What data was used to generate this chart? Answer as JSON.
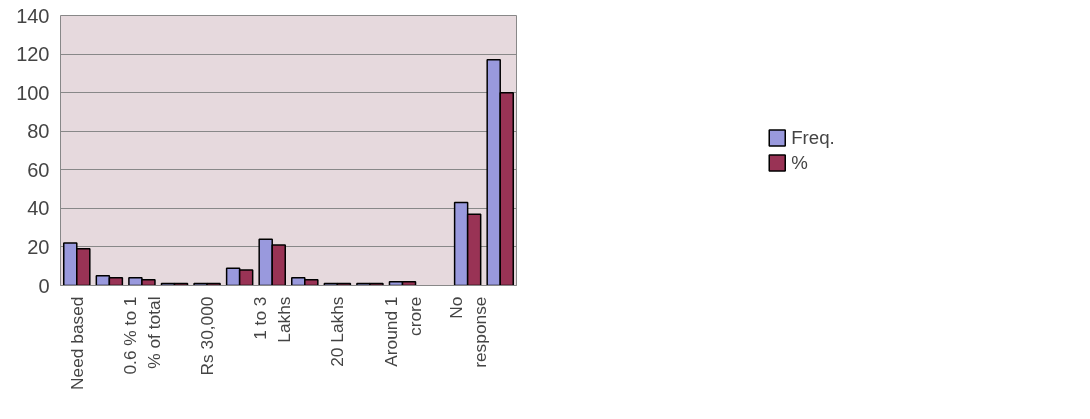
{
  "chart_data": {
    "type": "bar",
    "categories": [
      "Need based",
      null,
      "0.6 % to 1 % of total",
      null,
      "Rs 30,000",
      null,
      "1 to 3 Lakhs",
      null,
      "20 Lakhs",
      null,
      "Around 1 crore",
      null,
      "No response",
      null
    ],
    "series": [
      {
        "name": "Freq.",
        "color": "#9999dd",
        "values": [
          22,
          5,
          4,
          1,
          1,
          9,
          24,
          4,
          1,
          1,
          2,
          null,
          43,
          117
        ]
      },
      {
        "name": "%",
        "color": "#993355",
        "values": [
          19,
          4,
          3,
          1,
          1,
          8,
          21,
          3,
          1,
          1,
          2,
          null,
          37,
          100
        ]
      }
    ],
    "ylim": [
      0,
      140
    ],
    "yticks": [
      0,
      20,
      40,
      60,
      80,
      100,
      120,
      140
    ],
    "grid": "y",
    "legend": "right"
  }
}
